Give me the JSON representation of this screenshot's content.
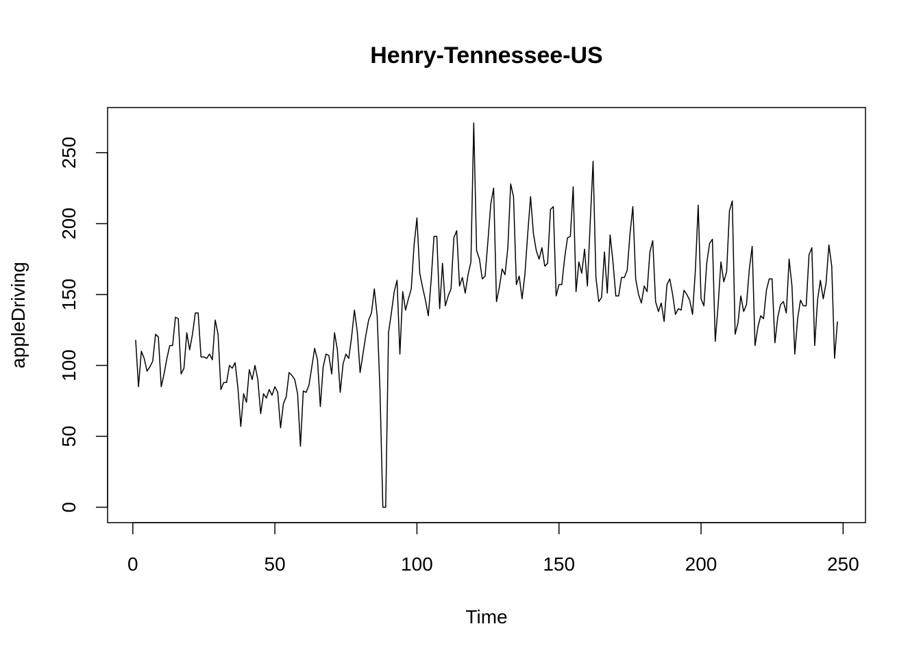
{
  "chart_data": {
    "type": "line",
    "title": "Henry-Tennessee-US",
    "xlabel": "Time",
    "ylabel": "appleDriving",
    "color": "#000000",
    "xlim": [
      -8.88,
      257.88
    ],
    "ylim": [
      -10.84,
      281.84
    ],
    "xticks": [
      0,
      50,
      100,
      150,
      200,
      250
    ],
    "yticks": [
      0,
      50,
      100,
      150,
      200,
      250
    ],
    "x": [
      1,
      2,
      3,
      4,
      5,
      6,
      7,
      8,
      9,
      10,
      11,
      12,
      13,
      14,
      15,
      16,
      17,
      18,
      19,
      20,
      21,
      22,
      23,
      24,
      25,
      26,
      27,
      28,
      29,
      30,
      31,
      32,
      33,
      34,
      35,
      36,
      37,
      38,
      39,
      40,
      41,
      42,
      43,
      44,
      45,
      46,
      47,
      48,
      49,
      50,
      51,
      52,
      53,
      54,
      55,
      56,
      57,
      58,
      59,
      60,
      61,
      62,
      63,
      64,
      65,
      66,
      67,
      68,
      69,
      70,
      71,
      72,
      73,
      74,
      75,
      76,
      77,
      78,
      79,
      80,
      81,
      82,
      83,
      84,
      85,
      86,
      87,
      88,
      89,
      90,
      91,
      92,
      93,
      94,
      95,
      96,
      97,
      98,
      99,
      100,
      101,
      102,
      103,
      104,
      105,
      106,
      107,
      108,
      109,
      110,
      111,
      112,
      113,
      114,
      115,
      116,
      117,
      118,
      119,
      120,
      121,
      122,
      123,
      124,
      125,
      126,
      127,
      128,
      129,
      130,
      131,
      132,
      133,
      134,
      135,
      136,
      137,
      138,
      139,
      140,
      141,
      142,
      143,
      144,
      145,
      146,
      147,
      148,
      149,
      150,
      151,
      152,
      153,
      154,
      155,
      156,
      157,
      158,
      159,
      160,
      161,
      162,
      163,
      164,
      165,
      166,
      167,
      168,
      169,
      170,
      171,
      172,
      173,
      174,
      175,
      176,
      177,
      178,
      179,
      180,
      181,
      182,
      183,
      184,
      185,
      186,
      187,
      188,
      189,
      190,
      191,
      192,
      193,
      194,
      195,
      196,
      197,
      198,
      199,
      200,
      201,
      202,
      203,
      204,
      205,
      206,
      207,
      208,
      209,
      210,
      211,
      212,
      213,
      214,
      215,
      216,
      217,
      218,
      219,
      220,
      221,
      222,
      223,
      224,
      225,
      226,
      227,
      228,
      229,
      230,
      231,
      232,
      233,
      234,
      235,
      236,
      237,
      238,
      239,
      240,
      241,
      242,
      243,
      244,
      245,
      246,
      247,
      248
    ],
    "values": [
      118,
      85,
      110,
      105,
      96,
      99,
      103,
      122,
      120,
      85,
      94,
      105,
      114,
      114,
      134,
      133,
      94,
      98,
      123,
      111,
      122,
      137,
      137,
      106,
      106,
      105,
      108,
      104,
      132,
      122,
      83,
      88,
      88,
      100,
      98,
      102,
      84,
      57,
      80,
      74,
      97,
      90,
      100,
      90,
      66,
      80,
      77,
      83,
      79,
      85,
      81,
      56,
      73,
      78,
      95,
      93,
      90,
      80,
      43,
      82,
      81,
      86,
      99,
      112,
      104,
      71,
      99,
      108,
      107,
      94,
      123,
      111,
      81,
      101,
      108,
      105,
      120,
      139,
      124,
      95,
      108,
      121,
      132,
      137,
      154,
      135,
      82,
      0,
      0,
      123,
      137,
      152,
      160,
      108,
      152,
      139,
      147,
      154,
      185,
      204,
      165,
      155,
      146,
      135,
      160,
      191,
      191,
      140,
      172,
      142,
      149,
      154,
      190,
      195,
      156,
      162,
      151,
      164,
      173,
      271,
      181,
      175,
      161,
      163,
      188,
      214,
      225,
      145,
      155,
      168,
      164,
      183,
      228,
      219,
      157,
      163,
      147,
      164,
      193,
      219,
      193,
      181,
      175,
      183,
      170,
      172,
      210,
      212,
      149,
      157,
      157,
      176,
      190,
      191,
      226,
      152,
      173,
      165,
      182,
      156,
      201,
      244,
      162,
      145,
      148,
      180,
      151,
      192,
      173,
      149,
      149,
      162,
      162,
      167,
      193,
      212,
      161,
      150,
      144,
      156,
      152,
      180,
      188,
      145,
      138,
      144,
      131,
      157,
      161,
      150,
      136,
      140,
      139,
      153,
      150,
      146,
      136,
      167,
      213,
      147,
      142,
      172,
      186,
      189,
      117,
      142,
      173,
      159,
      166,
      209,
      216,
      122,
      130,
      149,
      138,
      143,
      168,
      184,
      114,
      127,
      135,
      133,
      153,
      161,
      161,
      116,
      134,
      143,
      145,
      137,
      175,
      156,
      108,
      133,
      146,
      142,
      142,
      178,
      183,
      114,
      146,
      160,
      147,
      158,
      185,
      170,
      105,
      131
    ]
  }
}
